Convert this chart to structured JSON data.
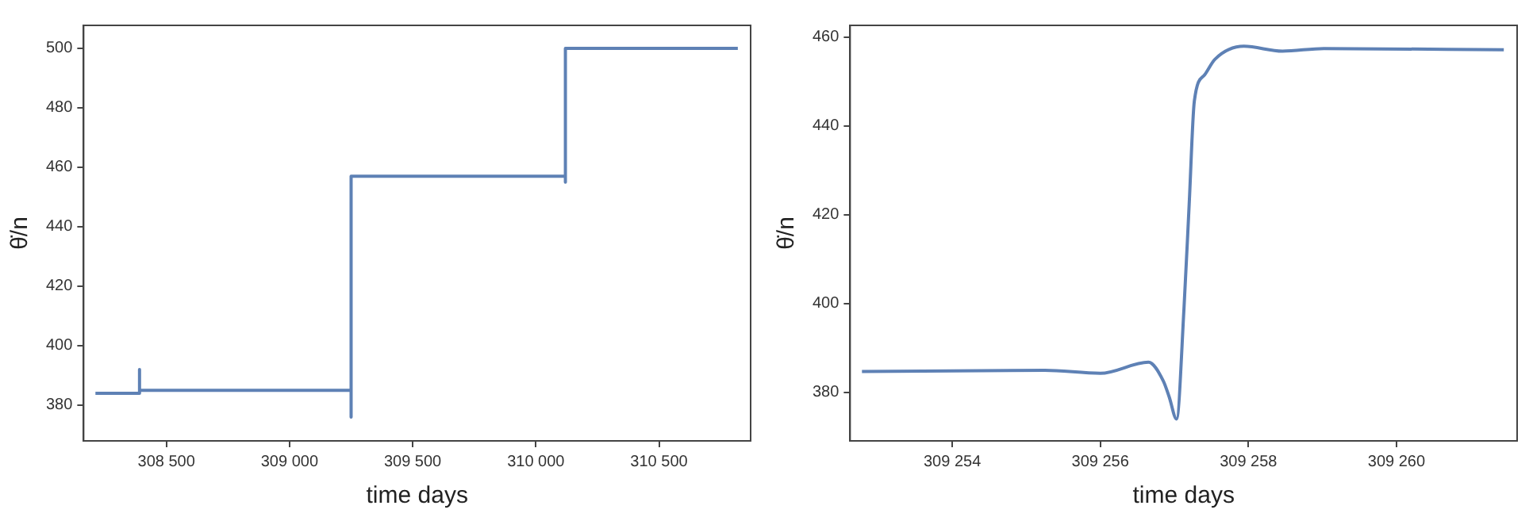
{
  "chart_data": [
    {
      "type": "line",
      "xlabel": "time days",
      "ylabel": "θ̇/n",
      "xlim": [
        308164,
        310872
      ],
      "ylim": [
        368,
        507.7
      ],
      "xticks": [
        {
          "value": 308500,
          "label": "308 500"
        },
        {
          "value": 309000,
          "label": "309 000"
        },
        {
          "value": 309500,
          "label": "309 500"
        },
        {
          "value": 310000,
          "label": "310 000"
        },
        {
          "value": 310500,
          "label": "310 500"
        }
      ],
      "yticks": [
        380,
        400,
        420,
        440,
        460,
        480,
        500
      ],
      "series": [
        {
          "color": "#5e81b5",
          "x": [
            308212,
            308391,
            308391,
            308391,
            309250,
            309250,
            309250,
            310120,
            310120,
            310120,
            310820
          ],
          "values": [
            384,
            384,
            392,
            385,
            385,
            376,
            457,
            457,
            455,
            500,
            500
          ]
        }
      ]
    },
    {
      "type": "line",
      "xlabel": "time days",
      "ylabel": "θ̇/n",
      "xlim": [
        309252.62,
        309261.63
      ],
      "ylim": [
        369.1,
        462.6
      ],
      "xticks": [
        {
          "value": 309254,
          "label": "309 254"
        },
        {
          "value": 309256,
          "label": "309 256"
        },
        {
          "value": 309258,
          "label": "309 258"
        },
        {
          "value": 309260,
          "label": "309 260"
        }
      ],
      "yticks": [
        380,
        400,
        420,
        440,
        460
      ],
      "series": [
        {
          "color": "#5e81b5",
          "x": [
            309252.78,
            309255.25,
            309256.0,
            309256.65,
            309256.85,
            309256.93,
            309257.03,
            309257.13,
            309257.2,
            309257.27,
            309257.41,
            309257.55,
            309257.94,
            309258.46,
            309259.02,
            309261.45
          ],
          "values": [
            384.7,
            385,
            384.3,
            386.8,
            382.6,
            379,
            374,
            398.9,
            422.3,
            445.6,
            451.5,
            455,
            457.9,
            456.8,
            457.4,
            457.1
          ]
        }
      ]
    }
  ]
}
